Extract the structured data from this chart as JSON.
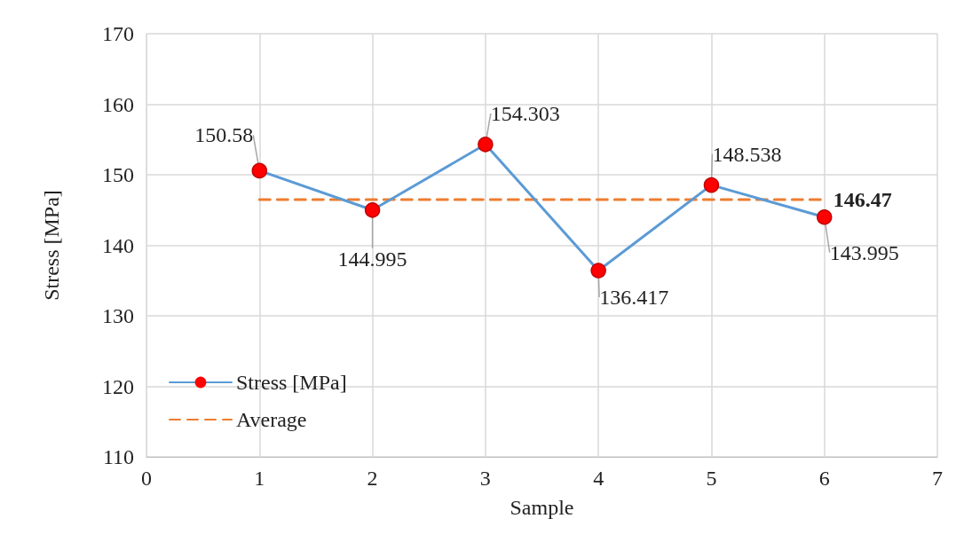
{
  "chart_data": {
    "type": "line",
    "xlabel": "Sample",
    "ylabel": "Stress [MPa]",
    "xlim": [
      0,
      7
    ],
    "xticks": [
      0,
      1,
      2,
      3,
      4,
      5,
      6,
      7
    ],
    "ylim": [
      110,
      170
    ],
    "yticks": [
      110,
      120,
      130,
      140,
      150,
      160,
      170
    ],
    "grid": true,
    "legend": "bottom left",
    "series": [
      {
        "name": "Stress [MPa]",
        "type": "line",
        "color": "#5b9bd5",
        "colors": [
          "#ff0000",
          "#ff0000",
          "#ff0000",
          "#ff0000",
          "#ff0000",
          "#ff0000"
        ],
        "marker": "circle",
        "line_style": "solid",
        "x": [
          1,
          2,
          3,
          4,
          5,
          6
        ],
        "values": [
          150.58,
          144.995,
          154.303,
          136.417,
          148.538,
          143.995
        ],
        "data_labels": true
      },
      {
        "name": "Average",
        "type": "line",
        "color": "#ed7d31",
        "marker": "none",
        "line_style": "dashed",
        "x": [
          1,
          6
        ],
        "values": [
          146.47,
          146.47
        ],
        "value_labels": [
          null,
          "146.47"
        ]
      }
    ]
  }
}
